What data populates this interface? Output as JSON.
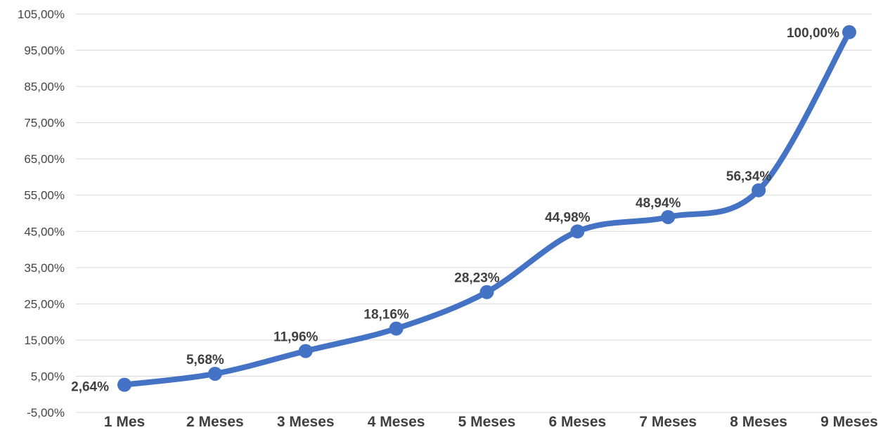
{
  "chart_data": {
    "type": "line",
    "categories": [
      "1 Mes",
      "2 Meses",
      "3 Meses",
      "4 Meses",
      "5 Meses",
      "6 Meses",
      "7 Meses",
      "8 Meses",
      "9 Meses"
    ],
    "series": [
      {
        "values": [
          2.64,
          5.68,
          11.96,
          18.16,
          28.23,
          44.98,
          48.94,
          56.34,
          100.0
        ],
        "labels": [
          "2,64%",
          "5,68%",
          "11,96%",
          "18,16%",
          "28,23%",
          "44,98%",
          "48,94%",
          "56,34%",
          "100,00%"
        ],
        "color": "#4472c4",
        "smooth": true
      }
    ],
    "yticks": [
      -5,
      5,
      15,
      25,
      35,
      45,
      55,
      65,
      75,
      85,
      95,
      105
    ],
    "ytick_labels": [
      "-5,00%",
      "5,00%",
      "15,00%",
      "25,00%",
      "35,00%",
      "45,00%",
      "55,00%",
      "65,00%",
      "75,00%",
      "85,00%",
      "95,00%",
      "105,00%"
    ],
    "ylim": [
      -5,
      105
    ],
    "grid": true,
    "legend": "none",
    "title": "",
    "xlabel": "",
    "ylabel": ""
  }
}
